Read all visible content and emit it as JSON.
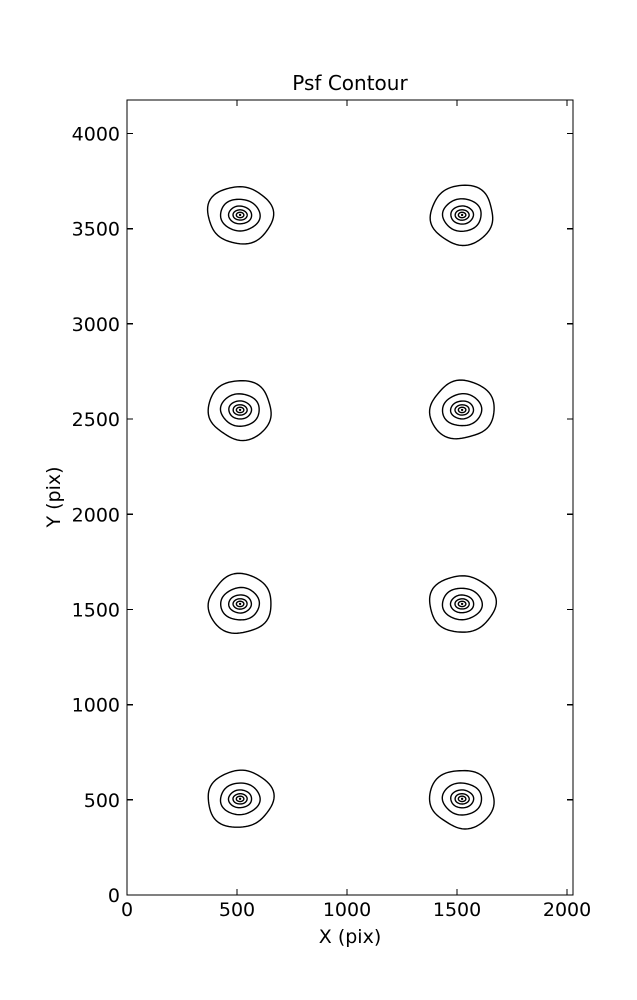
{
  "figure": {
    "background": "#ffffff",
    "line_color": "#000000"
  },
  "chart_data": {
    "type": "contour",
    "title": "Psf Contour",
    "xlabel": "X (pix)",
    "ylabel": "Y (pix)",
    "xlim": [
      0,
      2027
    ],
    "ylim": [
      0,
      4176
    ],
    "xticks": [
      0,
      500,
      1000,
      1500,
      2000
    ],
    "yticks": [
      0,
      500,
      1000,
      1500,
      2000,
      2500,
      3000,
      3500,
      4000
    ],
    "grid": false,
    "legend": "none",
    "line_color": "#000000",
    "background": "#ffffff",
    "description": "Eight point-spread-function contour blobs arranged in a 2x4 grid; each blob is a set of 5 nested closed contour lines plus a central dot",
    "psf_centers": [
      [
        514,
        505
      ],
      [
        1523,
        505
      ],
      [
        514,
        1529
      ],
      [
        1523,
        1529
      ],
      [
        514,
        2548
      ],
      [
        1523,
        2548
      ],
      [
        514,
        3572
      ],
      [
        1523,
        3572
      ]
    ],
    "contour_radii_x": [
      146,
      89,
      52,
      32,
      17,
      5
    ],
    "contour_radii_y": [
      153,
      84,
      47,
      27,
      14,
      5
    ]
  }
}
